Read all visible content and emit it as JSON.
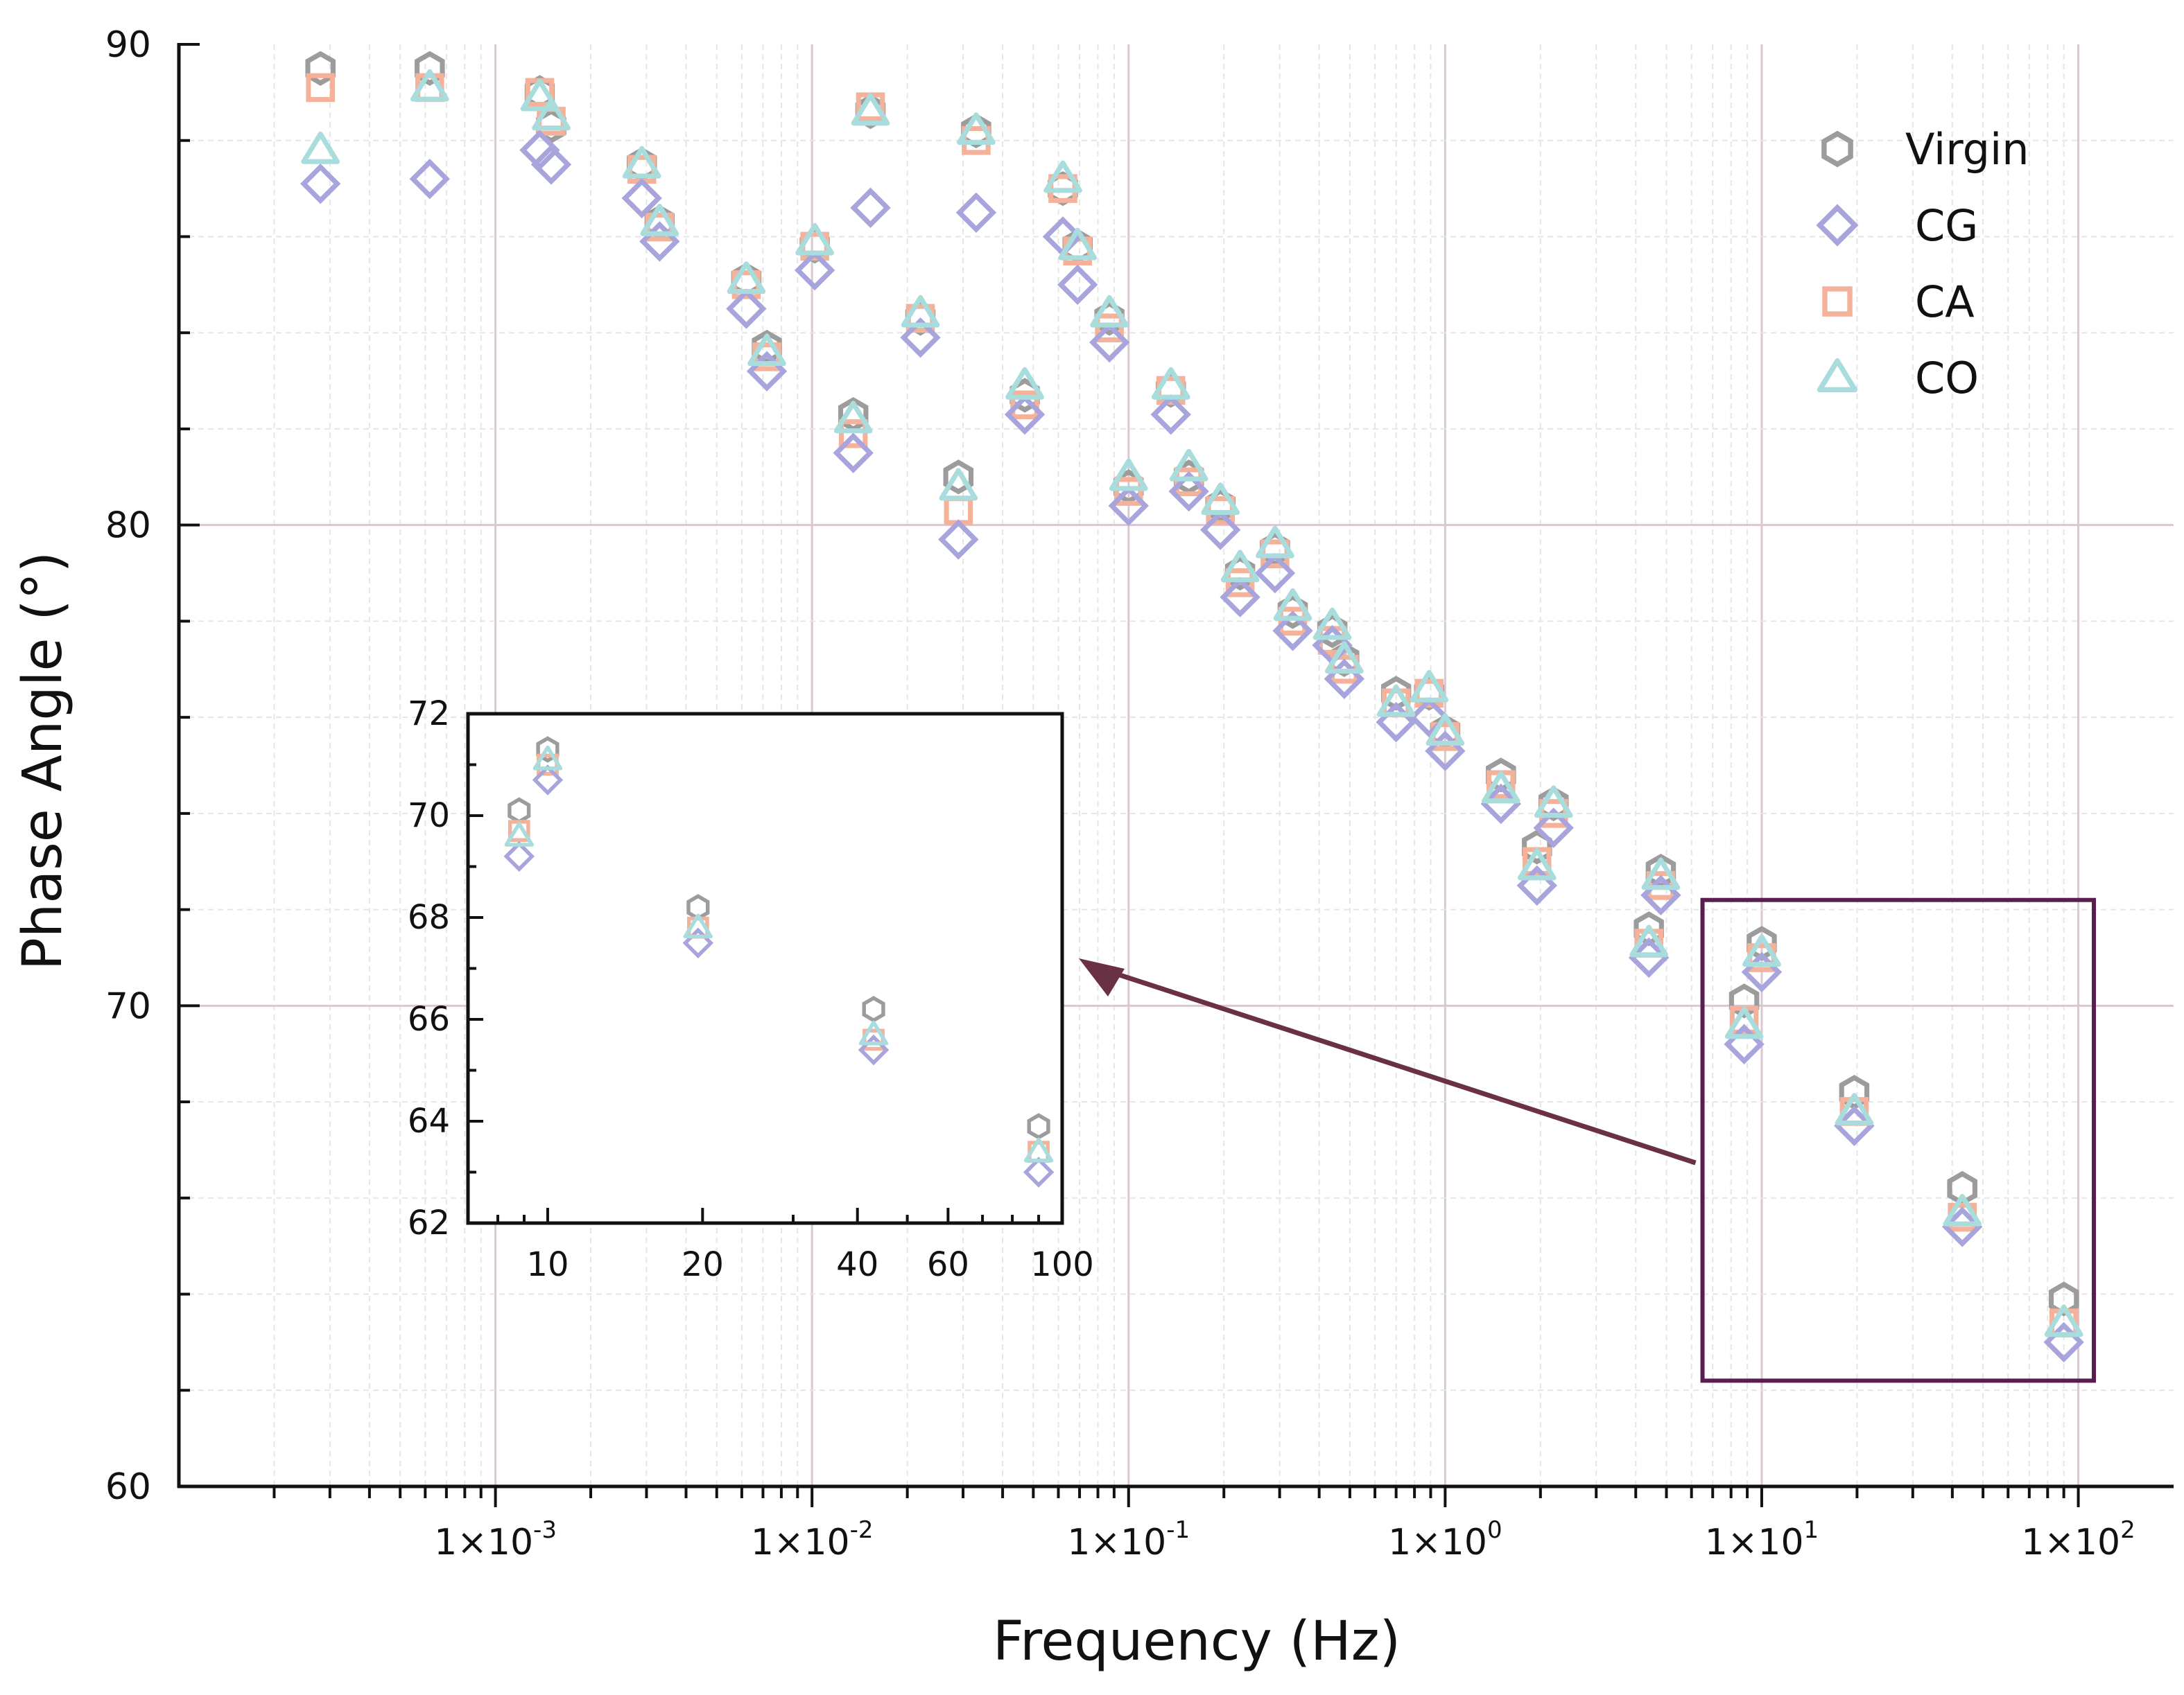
{
  "chart_data": {
    "type": "scatter",
    "main": {
      "xlabel": "Frequency (Hz)",
      "ylabel": "Phase Angle (°)",
      "x_scale": "log",
      "xlim": [
        0.0001,
        200
      ],
      "ylim": [
        60,
        90
      ],
      "x_ticks": [
        {
          "value": 0.001,
          "label": "1×10"
        },
        {
          "value": 0.01,
          "label": "1×10"
        },
        {
          "value": 0.1,
          "label": "1×10"
        },
        {
          "value": 1,
          "label": "1×10"
        },
        {
          "value": 10,
          "label": "1×10"
        },
        {
          "value": 100,
          "label": "1×10"
        }
      ],
      "x_tick_exponents": [
        "-3",
        "-2",
        "-1",
        "0",
        "1",
        "2"
      ],
      "y_ticks": [
        60,
        70,
        80,
        90
      ],
      "grid": true,
      "legend_position": "top-right"
    },
    "x": [
      0.00028,
      0.00062,
      0.00138,
      0.0015,
      0.0029,
      0.0033,
      0.0062,
      0.0072,
      0.0102,
      0.0135,
      0.0153,
      0.022,
      0.029,
      0.033,
      0.047,
      0.062,
      0.069,
      0.087,
      0.1,
      0.136,
      0.155,
      0.195,
      0.225,
      0.29,
      0.33,
      0.44,
      0.48,
      0.7,
      0.89,
      1.0,
      1.5,
      1.95,
      2.2,
      4.4,
      4.8,
      8.8,
      10.0,
      19.6,
      43.0,
      90.0
    ],
    "series": [
      {
        "name": "Virgin",
        "marker": "hexagon",
        "color": "#9c9c9c",
        "values": [
          89.5,
          89.5,
          89.0,
          88.3,
          87.5,
          86.3,
          85.1,
          83.7,
          85.8,
          82.3,
          88.6,
          84.3,
          81.0,
          88.2,
          82.7,
          87.0,
          85.8,
          84.3,
          80.8,
          82.8,
          81.0,
          80.4,
          79.0,
          79.5,
          78.2,
          77.8,
          77.2,
          76.5,
          76.5,
          75.7,
          74.8,
          73.3,
          74.2,
          71.6,
          72.8,
          70.1,
          71.3,
          68.2,
          66.2,
          63.9
        ]
      },
      {
        "name": "CG",
        "marker": "diamond",
        "color": "#a8a4dc",
        "values": [
          87.1,
          87.2,
          87.8,
          87.5,
          86.8,
          85.9,
          84.5,
          83.2,
          85.3,
          81.5,
          86.6,
          83.9,
          79.7,
          86.5,
          82.3,
          86.0,
          85.0,
          83.8,
          80.4,
          82.3,
          80.7,
          79.9,
          78.5,
          79.0,
          77.8,
          77.5,
          76.8,
          75.9,
          76.0,
          75.3,
          74.2,
          72.5,
          73.7,
          71.0,
          72.3,
          69.2,
          70.7,
          67.5,
          65.4,
          63.0
        ]
      },
      {
        "name": "CA",
        "marker": "square",
        "color": "#f4b29a",
        "values": [
          89.1,
          89.1,
          89.0,
          88.4,
          87.4,
          86.2,
          85.0,
          83.5,
          85.8,
          81.9,
          88.7,
          84.3,
          80.3,
          88.0,
          82.5,
          87.0,
          85.7,
          84.1,
          80.7,
          82.8,
          80.9,
          80.3,
          78.8,
          79.4,
          78.0,
          77.6,
          77.0,
          76.3,
          76.5,
          75.6,
          74.6,
          73.0,
          74.0,
          71.3,
          72.5,
          69.7,
          71.0,
          67.8,
          65.6,
          63.4
        ]
      },
      {
        "name": "CO",
        "marker": "triangle",
        "color": "#a9dcdc",
        "values": [
          87.8,
          89.1,
          88.9,
          88.5,
          87.5,
          86.3,
          85.1,
          83.6,
          85.9,
          82.2,
          88.6,
          84.4,
          80.8,
          88.2,
          82.9,
          87.2,
          85.8,
          84.4,
          81.0,
          82.9,
          81.2,
          80.5,
          79.1,
          79.6,
          78.3,
          77.9,
          77.2,
          76.3,
          76.6,
          75.7,
          74.5,
          72.9,
          74.2,
          71.3,
          72.7,
          69.6,
          71.1,
          67.8,
          65.7,
          63.4
        ]
      }
    ],
    "inset": {
      "x_scale": "log",
      "xlim": [
        7,
        100
      ],
      "ylim": [
        62,
        72
      ],
      "x_ticks": [
        10,
        20,
        40,
        60,
        100
      ],
      "y_ticks": [
        62,
        64,
        66,
        68,
        70,
        72
      ],
      "x_tick_labels": [
        "10",
        "20",
        "40",
        "60",
        "100"
      ],
      "y_tick_labels": [
        "62",
        "64",
        "66",
        "68",
        "70",
        "72"
      ]
    },
    "highlight": {
      "x_range": [
        6.5,
        112
      ],
      "y_range": [
        62.2,
        72.2
      ],
      "color": "#5a1e4e"
    },
    "arrow_color": "#6a3044"
  }
}
